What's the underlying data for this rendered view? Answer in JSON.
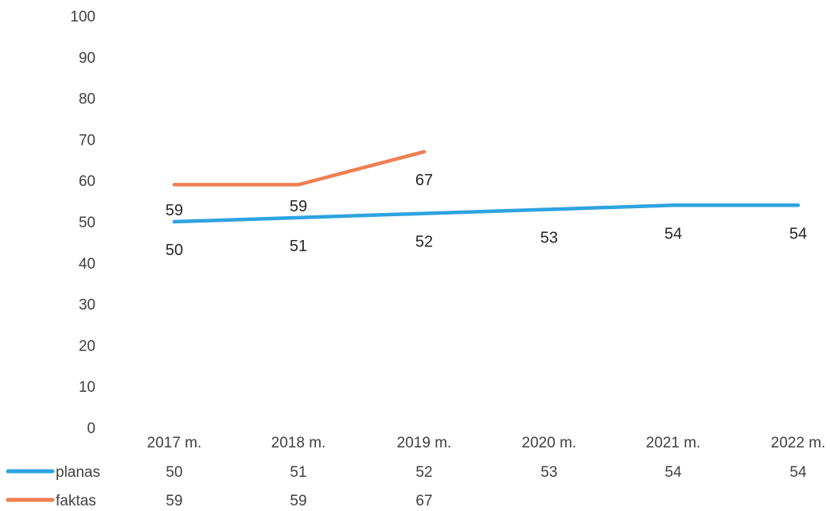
{
  "chart_data": {
    "type": "line",
    "title": "",
    "xlabel": "",
    "ylabel": "",
    "ylim": [
      0,
      100
    ],
    "yticks": [
      0,
      10,
      20,
      30,
      40,
      50,
      60,
      70,
      80,
      90,
      100
    ],
    "categories": [
      "2017 m.",
      "2018 m.",
      "2019 m.",
      "2020 m.",
      "2021 m.",
      "2022 m."
    ],
    "grid": false,
    "legend": "bottom-left, as data table",
    "series": [
      {
        "name": "planas",
        "color": "#2ea3e0",
        "values": [
          50,
          51,
          52,
          53,
          54,
          54
        ]
      },
      {
        "name": "faktas",
        "color": "#f07f52",
        "values": [
          59,
          59,
          67,
          null,
          null,
          null
        ]
      }
    ]
  }
}
